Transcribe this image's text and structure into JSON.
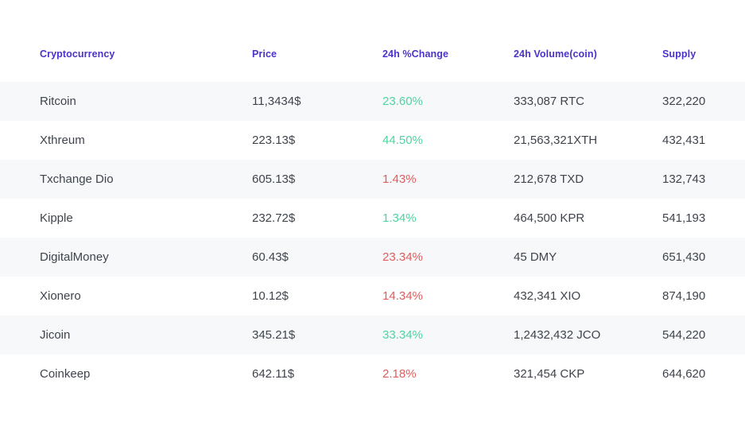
{
  "table": {
    "columns": [
      "Cryptocurrency",
      "Price",
      "24h %Change",
      "24h Volume(coin)",
      "Supply"
    ],
    "rows": [
      {
        "name": "Ritcoin",
        "price": "11,3434$",
        "change": "23.60%",
        "trend": "up",
        "volume": "333,087 RTC",
        "supply": "322,220"
      },
      {
        "name": "Xthreum",
        "price": "223.13$",
        "change": "44.50%",
        "trend": "up",
        "volume": "21,563,321XTH",
        "supply": "432,431"
      },
      {
        "name": "Txchange Dio",
        "price": "605.13$",
        "change": "1.43%",
        "trend": "down",
        "volume": "212,678 TXD",
        "supply": "132,743"
      },
      {
        "name": "Kipple",
        "price": "232.72$",
        "change": "1.34%",
        "trend": "up",
        "volume": "464,500 KPR",
        "supply": "541,193"
      },
      {
        "name": "DigitalMoney",
        "price": "60.43$",
        "change": "23.34%",
        "trend": "down",
        "volume": "45 DMY",
        "supply": "651,430"
      },
      {
        "name": "Xionero",
        "price": "10.12$",
        "change": "14.34%",
        "trend": "down",
        "volume": "432,341 XIO",
        "supply": "874,190"
      },
      {
        "name": "Jicoin",
        "price": "345.21$",
        "change": "33.34%",
        "trend": "up",
        "volume": "1,2432,432 JCO",
        "supply": "544,220"
      },
      {
        "name": "Coinkeep",
        "price": "642.11$",
        "change": "2.18%",
        "trend": "down",
        "volume": "321,454 CKP",
        "supply": "644,620"
      }
    ]
  },
  "theme": {
    "header_text": "#4b32c8",
    "body_text": "#3f444c",
    "positive": "#4ed4a0",
    "negative": "#e25c5c",
    "row_stripe": "#f7f8fa",
    "background": "#ffffff"
  }
}
